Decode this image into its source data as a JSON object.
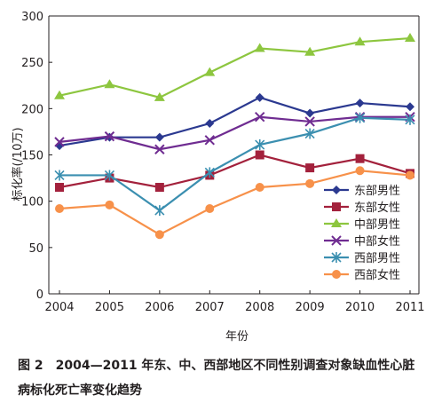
{
  "chart_data": {
    "type": "line",
    "xlabel": "年份",
    "ylabel": "标化率(/10万)",
    "ylim": [
      0,
      300
    ],
    "yticks": [
      0,
      50,
      100,
      150,
      200,
      250,
      300
    ],
    "categories": [
      "2004",
      "2005",
      "2006",
      "2007",
      "2008",
      "2009",
      "2010",
      "2011"
    ],
    "grid": false,
    "legend_position": "bottom-right",
    "series": [
      {
        "name": "东部男性",
        "color": "#2b3990",
        "marker": "diamond",
        "values": [
          160,
          169,
          169,
          184,
          212,
          195,
          206,
          202
        ]
      },
      {
        "name": "东部女性",
        "color": "#a3213c",
        "marker": "square",
        "values": [
          115,
          125,
          115,
          128,
          150,
          136,
          146,
          130
        ]
      },
      {
        "name": "中部男性",
        "color": "#8dc63f",
        "marker": "triangle",
        "values": [
          214,
          226,
          212,
          239,
          265,
          261,
          272,
          276
        ]
      },
      {
        "name": "中部女性",
        "color": "#6f2c91",
        "marker": "x",
        "values": [
          164,
          170,
          156,
          166,
          191,
          186,
          191,
          191
        ]
      },
      {
        "name": "西部男性",
        "color": "#3b8fb0",
        "marker": "star",
        "values": [
          128,
          128,
          90,
          131,
          161,
          173,
          190,
          188
        ]
      },
      {
        "name": "西部女性",
        "color": "#f7914a",
        "marker": "circle",
        "values": [
          92,
          96,
          64,
          92,
          115,
          119,
          133,
          128
        ]
      }
    ]
  },
  "caption": {
    "figure_number": "图 2",
    "text": "2004—2011 年东、中、西部地区不同性别调查对象缺血性心脏病标化死亡率变化趋势"
  }
}
